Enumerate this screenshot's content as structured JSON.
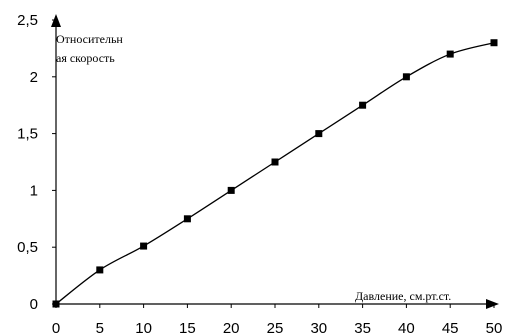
{
  "chart_data": {
    "type": "line",
    "x": [
      0,
      5,
      10,
      15,
      20,
      25,
      30,
      35,
      40,
      45,
      50
    ],
    "series": [
      {
        "values": [
          0,
          0.3,
          0.51,
          0.75,
          1.0,
          1.25,
          1.5,
          1.75,
          2.0,
          2.2,
          2.3
        ],
        "marker": "square",
        "color": "#000000"
      }
    ],
    "xticks": [
      "0",
      "5",
      "10",
      "15",
      "20",
      "25",
      "30",
      "35",
      "40",
      "45",
      "50"
    ],
    "yticks": [
      "0",
      "0,5",
      "1",
      "1,5",
      "2",
      "2,5"
    ],
    "xlim": [
      0,
      50
    ],
    "ylim": [
      0,
      2.5
    ],
    "ylabel_lines": [
      "Относительн",
      "ая скорость"
    ],
    "xlabel": "Давление, см.рт.ст.",
    "grid": false,
    "legend": false
  }
}
